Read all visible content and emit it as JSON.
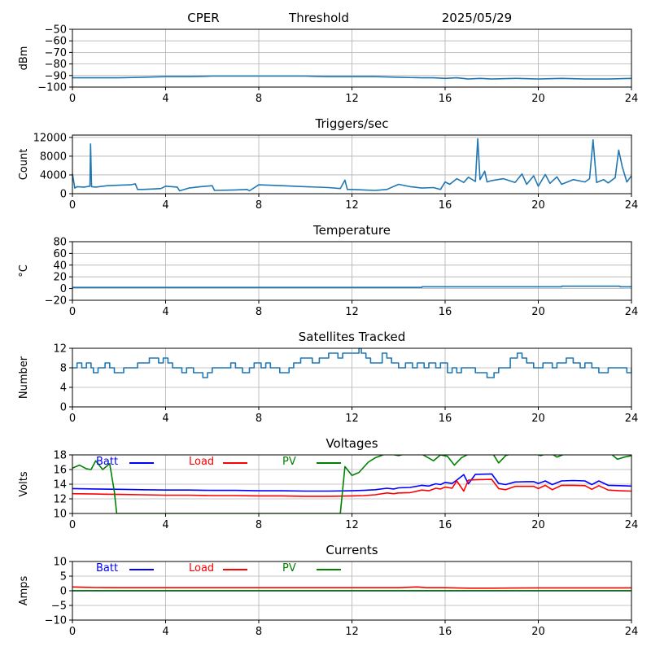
{
  "header": {
    "station": "CPER",
    "mode": "Threshold",
    "date": "2025/05/29"
  },
  "colors": {
    "series": "#1f77b4",
    "batt": "#0000ff",
    "load": "#ff0000",
    "pv": "#008000",
    "grid": "#b0b0b0"
  },
  "chart_data": [
    {
      "type": "line",
      "title": "",
      "ylabel": "dBm",
      "xlim": [
        0,
        24
      ],
      "ylim": [
        -100,
        -50
      ],
      "xticks": [
        0,
        4,
        8,
        12,
        16,
        20,
        24
      ],
      "yticks": [
        -100,
        -90,
        -80,
        -70,
        -60,
        -50
      ],
      "grid": true,
      "series": [
        {
          "color": "#1f77b4",
          "x": [
            0,
            1,
            2,
            3,
            4,
            5,
            6,
            7,
            8,
            9,
            10,
            11,
            12,
            13,
            14,
            15,
            15.5,
            16,
            16.5,
            17,
            17.5,
            18,
            19,
            20,
            21,
            22,
            23,
            24
          ],
          "y": [
            -92,
            -92,
            -92,
            -91.5,
            -91,
            -91,
            -90.5,
            -90.5,
            -90.5,
            -90.5,
            -90.5,
            -91,
            -91,
            -91,
            -91.5,
            -92,
            -92,
            -92.5,
            -92,
            -93,
            -92.5,
            -93,
            -92.5,
            -93,
            -92.5,
            -93,
            -93,
            -92.5
          ]
        }
      ]
    },
    {
      "type": "line",
      "title": "Triggers/sec",
      "ylabel": "Count",
      "xlim": [
        0,
        24
      ],
      "ylim": [
        0,
        12500
      ],
      "xticks": [
        0,
        4,
        8,
        12,
        16,
        20,
        24
      ],
      "yticks": [
        0,
        4000,
        8000,
        12000
      ],
      "grid": true,
      "series": [
        {
          "color": "#1f77b4",
          "x": [
            0,
            0.1,
            0.2,
            0.5,
            0.75,
            0.78,
            0.82,
            1,
            1.5,
            2,
            2.5,
            2.7,
            2.8,
            3,
            3.5,
            3.8,
            4,
            4.5,
            4.6,
            5,
            5.5,
            6,
            6.1,
            7,
            7.5,
            7.6,
            8,
            9,
            10,
            11,
            11.5,
            11.7,
            11.8,
            12,
            12.5,
            13,
            13.5,
            14,
            14.5,
            15,
            15.5,
            15.8,
            16,
            16.2,
            16.5,
            16.8,
            17,
            17.3,
            17.4,
            17.5,
            17.7,
            17.8,
            18,
            18.5,
            19,
            19.3,
            19.5,
            19.8,
            20,
            20.3,
            20.5,
            20.8,
            21,
            21.5,
            22,
            22.2,
            22.35,
            22.5,
            22.8,
            23,
            23.3,
            23.45,
            23.6,
            23.8,
            24
          ],
          "y": [
            4300,
            1200,
            1500,
            1400,
            1600,
            10600,
            1500,
            1400,
            1700,
            1800,
            1900,
            2100,
            900,
            900,
            1000,
            1100,
            1600,
            1400,
            600,
            1200,
            1500,
            1700,
            700,
            800,
            900,
            600,
            1900,
            1700,
            1500,
            1300,
            1100,
            2900,
            900,
            900,
            800,
            700,
            900,
            2000,
            1500,
            1200,
            1300,
            900,
            2500,
            2000,
            3200,
            2400,
            3500,
            2600,
            11700,
            3000,
            4800,
            2500,
            2800,
            3200,
            2400,
            4200,
            2000,
            3800,
            1600,
            4100,
            2200,
            3600,
            2000,
            3000,
            2500,
            3200,
            11500,
            2400,
            3000,
            2300,
            3400,
            9300,
            5800,
            2500,
            3800
          ]
        }
      ]
    },
    {
      "type": "line",
      "title": "Temperature",
      "ylabel": "°C",
      "xlim": [
        0,
        24
      ],
      "ylim": [
        -20,
        80
      ],
      "xticks": [
        0,
        4,
        8,
        12,
        16,
        20,
        24
      ],
      "yticks": [
        -20,
        0,
        20,
        40,
        60,
        80
      ],
      "grid": true,
      "series": [
        {
          "color": "#1f77b4",
          "x": [
            0,
            15,
            15.01,
            21,
            21.01,
            23.5,
            23.51,
            24
          ],
          "y": [
            2,
            2,
            3,
            3,
            4,
            4,
            3,
            3
          ]
        }
      ]
    },
    {
      "type": "line",
      "title": "Satellites Tracked",
      "ylabel": "Number",
      "xlim": [
        0,
        24
      ],
      "ylim": [
        0,
        12
      ],
      "xticks": [
        0,
        4,
        8,
        12,
        16,
        20,
        24
      ],
      "yticks": [
        0,
        4,
        8,
        12
      ],
      "grid": true,
      "series": [
        {
          "color": "#1f77b4",
          "step": true,
          "x": [
            0,
            0.2,
            0.4,
            0.6,
            0.8,
            0.9,
            1.1,
            1.4,
            1.6,
            1.8,
            2.2,
            2.8,
            3.3,
            3.7,
            3.9,
            4.1,
            4.3,
            4.7,
            4.9,
            5.2,
            5.6,
            5.8,
            6.0,
            6.8,
            7.0,
            7.3,
            7.6,
            7.8,
            8.1,
            8.3,
            8.5,
            8.9,
            9.3,
            9.5,
            9.8,
            10.3,
            10.6,
            11.0,
            11.4,
            11.6,
            12.3,
            12.4,
            12.6,
            12.8,
            13.3,
            13.5,
            13.7,
            14.0,
            14.3,
            14.6,
            14.8,
            15.1,
            15.3,
            15.6,
            15.8,
            16.1,
            16.3,
            16.5,
            16.7,
            17.3,
            17.8,
            18.1,
            18.3,
            18.8,
            19.1,
            19.3,
            19.5,
            19.8,
            20.2,
            20.6,
            20.8,
            21.2,
            21.5,
            21.8,
            22.0,
            22.3,
            22.6,
            23.0,
            23.5,
            23.8,
            24
          ],
          "y": [
            8,
            9,
            8,
            9,
            8,
            7,
            8,
            9,
            8,
            7,
            8,
            9,
            10,
            9,
            10,
            9,
            8,
            7,
            8,
            7,
            6,
            7,
            8,
            9,
            8,
            7,
            8,
            9,
            8,
            9,
            8,
            7,
            8,
            9,
            10,
            9,
            10,
            11,
            10,
            11,
            12,
            11,
            10,
            9,
            11,
            10,
            9,
            8,
            9,
            8,
            9,
            8,
            9,
            8,
            9,
            7,
            8,
            7,
            8,
            7,
            6,
            7,
            8,
            10,
            11,
            10,
            9,
            8,
            9,
            8,
            9,
            10,
            9,
            8,
            9,
            8,
            7,
            8,
            8,
            7,
            8
          ]
        }
      ]
    },
    {
      "type": "line",
      "title": "Voltages",
      "ylabel": "Volts",
      "xlim": [
        0,
        24
      ],
      "ylim": [
        10,
        18
      ],
      "xticks": [
        0,
        4,
        8,
        12,
        16,
        20,
        24
      ],
      "yticks": [
        10,
        12,
        14,
        16,
        18
      ],
      "grid": true,
      "legend": "inside-top",
      "series": [
        {
          "name": "Batt",
          "color": "#0000ff",
          "x": [
            0,
            1,
            2,
            3,
            4,
            5,
            6,
            7,
            8,
            9,
            10,
            11,
            12,
            12.5,
            13,
            13.5,
            13.8,
            14,
            14.5,
            15,
            15.3,
            15.6,
            15.8,
            16,
            16.3,
            16.5,
            16.8,
            17.0,
            17.3,
            18.0,
            18.3,
            18.6,
            19,
            19.5,
            19.8,
            20,
            20.3,
            20.6,
            21,
            21.5,
            22,
            22.3,
            22.6,
            23,
            23.5,
            24
          ],
          "y": [
            13.4,
            13.35,
            13.3,
            13.25,
            13.2,
            13.2,
            13.15,
            13.15,
            13.1,
            13.1,
            13.05,
            13.05,
            13.1,
            13.15,
            13.25,
            13.45,
            13.35,
            13.5,
            13.55,
            13.85,
            13.75,
            14.05,
            13.95,
            14.25,
            14.1,
            14.55,
            15.3,
            14.05,
            15.35,
            15.4,
            14.1,
            13.95,
            14.3,
            14.35,
            14.35,
            14.1,
            14.45,
            13.95,
            14.45,
            14.5,
            14.45,
            13.95,
            14.45,
            13.85,
            13.8,
            13.75
          ]
        },
        {
          "name": "Load",
          "color": "#ff0000",
          "x": [
            0,
            1,
            2,
            3,
            4,
            5,
            6,
            7,
            8,
            9,
            10,
            11,
            12,
            12.5,
            13,
            13.5,
            13.8,
            14,
            14.5,
            15,
            15.3,
            15.6,
            15.8,
            16,
            16.3,
            16.5,
            16.8,
            17.0,
            17.3,
            18.0,
            18.3,
            18.6,
            19,
            19.5,
            19.8,
            20,
            20.3,
            20.6,
            21,
            21.5,
            22,
            22.3,
            22.6,
            23,
            23.5,
            24
          ],
          "y": [
            12.7,
            12.65,
            12.6,
            12.55,
            12.5,
            12.5,
            12.45,
            12.45,
            12.4,
            12.4,
            12.35,
            12.35,
            12.4,
            12.45,
            12.55,
            12.8,
            12.7,
            12.8,
            12.85,
            13.2,
            13.1,
            13.45,
            13.35,
            13.6,
            13.45,
            14.45,
            13.05,
            14.55,
            14.6,
            14.65,
            13.4,
            13.25,
            13.7,
            13.7,
            13.7,
            13.4,
            13.85,
            13.25,
            13.85,
            13.85,
            13.8,
            13.3,
            13.8,
            13.2,
            13.1,
            13.05
          ]
        },
        {
          "name": "PV",
          "color": "#008000",
          "x": [
            0,
            0.3,
            0.6,
            0.8,
            1.0,
            1.3,
            1.6,
            1.8,
            1.9,
            2.0,
            11.3,
            11.5,
            11.7,
            12.0,
            12.3,
            12.7,
            13.0,
            13.5,
            14.0,
            14.5,
            15.0,
            15.5,
            15.8,
            16.1,
            16.4,
            16.7,
            17,
            17.3,
            17.6,
            18.0,
            18.3,
            18.6,
            19,
            19.5,
            19.8,
            20.1,
            20.5,
            20.8,
            21.2,
            21.6,
            22,
            22.4,
            22.7,
            23.1,
            23.4,
            23.7,
            24
          ],
          "y": [
            16.2,
            16.6,
            16.1,
            16.0,
            17.2,
            16.0,
            16.8,
            13.0,
            10.0,
            10.0,
            10.0,
            10.0,
            16.4,
            15.2,
            15.6,
            17.0,
            17.6,
            18.2,
            17.9,
            18.3,
            18.1,
            17.2,
            18.0,
            17.8,
            16.6,
            17.6,
            18.1,
            18.2,
            18.1,
            18.4,
            16.9,
            17.9,
            18.3,
            18.1,
            18.2,
            17.9,
            18.3,
            17.7,
            18.2,
            18.3,
            18.2,
            18.3,
            18.1,
            18.2,
            17.4,
            17.7,
            17.9
          ]
        }
      ]
    },
    {
      "type": "line",
      "title": "Currents",
      "ylabel": "Amps",
      "xlim": [
        0,
        24
      ],
      "ylim": [
        -10,
        10
      ],
      "xticks": [
        0,
        4,
        8,
        12,
        16,
        20,
        24
      ],
      "yticks": [
        -10,
        -5,
        0,
        5,
        10
      ],
      "grid": true,
      "legend": "inside-top",
      "series": [
        {
          "name": "Batt",
          "color": "#0000ff",
          "x": [
            0,
            24
          ],
          "y": [
            0.0,
            0.0
          ]
        },
        {
          "name": "Load",
          "color": "#ff0000",
          "x": [
            0,
            0.5,
            1,
            2,
            4,
            8,
            12,
            14,
            14.8,
            15.2,
            16,
            17,
            18,
            20,
            22,
            24
          ],
          "y": [
            1.3,
            1.2,
            1.1,
            1.05,
            1.05,
            1.05,
            1.05,
            1.05,
            1.3,
            1.05,
            1.05,
            0.9,
            0.9,
            1.0,
            1.0,
            1.0
          ]
        },
        {
          "name": "PV",
          "color": "#008000",
          "x": [
            0,
            24
          ],
          "y": [
            0.05,
            0.05
          ]
        }
      ]
    }
  ]
}
